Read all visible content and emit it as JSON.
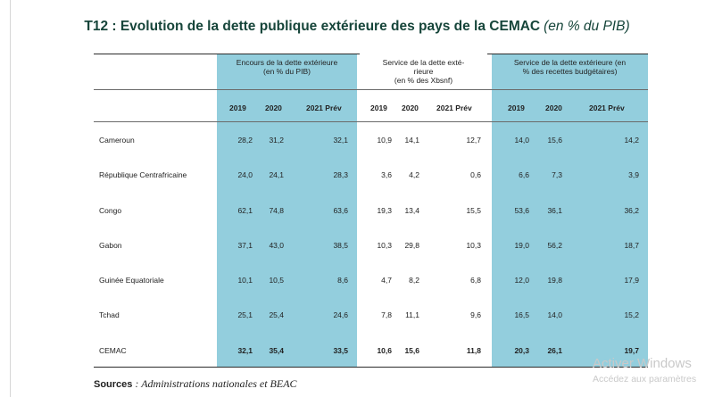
{
  "title": "T12 : Evolution de la dette publique extérieure des pays de la CEMAC",
  "title_unit": "(en % du PIB)",
  "group_headers": [
    [
      "Encours de la dette extérieure",
      "(en % du PIB)"
    ],
    [
      "Service de la dette exté-",
      "rieure",
      "(en % des Xbsnf)"
    ],
    [
      "Service de la dette extérieure (en",
      "% des recettes budgétaires)"
    ]
  ],
  "year_headers": [
    "2019",
    "2020",
    "2021 Prév"
  ],
  "rows": [
    {
      "country": "Cameroun",
      "values": [
        "28,2",
        "31,2",
        "32,1",
        "10,9",
        "14,1",
        "12,7",
        "14,0",
        "15,6",
        "14,2"
      ]
    },
    {
      "country": "République Centrafricaine",
      "values": [
        "24,0",
        "24,1",
        "28,3",
        "3,6",
        "4,2",
        "0,6",
        "6,6",
        "7,3",
        "3,9"
      ]
    },
    {
      "country": "Congo",
      "values": [
        "62,1",
        "74,8",
        "63,6",
        "19,3",
        "13,4",
        "15,5",
        "53,6",
        "36,1",
        "36,2"
      ]
    },
    {
      "country": "Gabon",
      "values": [
        "37,1",
        "43,0",
        "38,5",
        "10,3",
        "29,8",
        "10,3",
        "19,0",
        "56,2",
        "18,7"
      ]
    },
    {
      "country": "Guinée Equatoriale",
      "values": [
        "10,1",
        "10,5",
        "8,6",
        "4,7",
        "8,2",
        "6,8",
        "12,0",
        "19,8",
        "17,9"
      ]
    },
    {
      "country": "Tchad",
      "values": [
        "25,1",
        "25,4",
        "24,6",
        "7,8",
        "11,1",
        "9,6",
        "16,5",
        "14,0",
        "15,2"
      ]
    }
  ],
  "total_row": {
    "country": "CEMAC",
    "values": [
      "32,1",
      "35,4",
      "33,5",
      "10,6",
      "15,6",
      "11,8",
      "20,3",
      "26,1",
      "19,7"
    ]
  },
  "sources": {
    "label": "Sources",
    "text": ": Administrations nationales et BEAC"
  },
  "watermark": {
    "line1": "Activer Windows",
    "line2": "Accédez aux paramètres"
  }
}
